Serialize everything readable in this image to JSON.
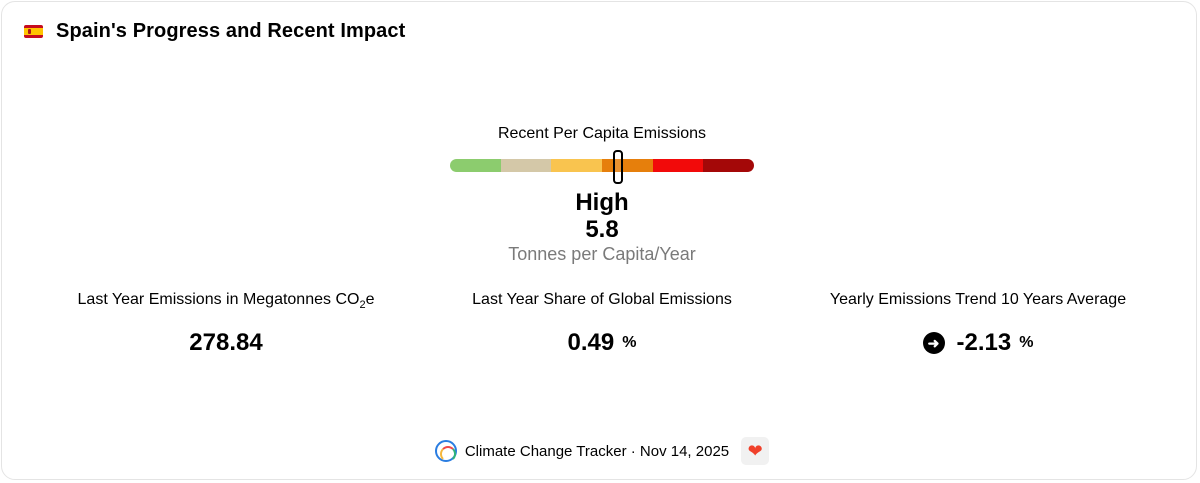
{
  "header": {
    "flag_icon": "spain-flag-icon",
    "title": "Spain's Progress and Recent Impact"
  },
  "gauge": {
    "label": "Recent Per Capita Emissions",
    "segment_colors": [
      "#8ccc6e",
      "#d4c8a8",
      "#f9c44f",
      "#e67f0c",
      "#f20a0a",
      "#a40808"
    ],
    "level": "High",
    "value": "5.8",
    "unit": "Tonnes per Capita/Year"
  },
  "stats": [
    {
      "label_main": "Last Year Emissions in Megatonnes CO",
      "label_sub": "2",
      "label_tail": "e",
      "value": "278.84",
      "suffix": ""
    },
    {
      "label_main": "Last Year Share of Global Emissions",
      "value": "0.49",
      "suffix": "%"
    },
    {
      "label_main": "Yearly Emissions Trend 10 Years Average",
      "value": "-2.13",
      "suffix": "%",
      "icon": "arrow-right-circle-icon"
    }
  ],
  "footer": {
    "source": "Climate Change Tracker · Nov 14, 2025",
    "logo_icon": "climate-tracker-logo-icon",
    "heart_icon": "heart-icon"
  }
}
